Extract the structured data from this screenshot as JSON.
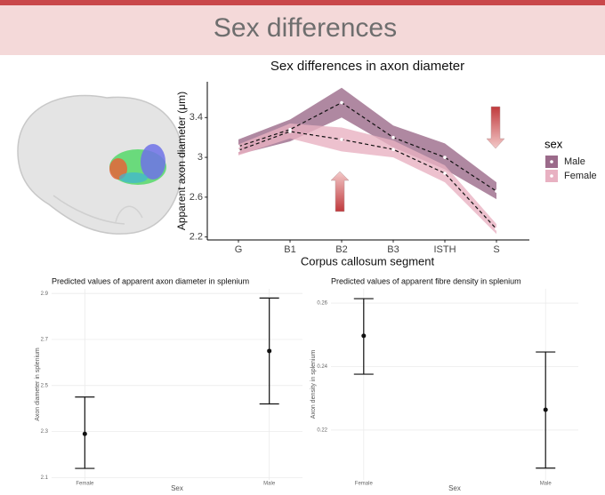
{
  "title": "Sex differences",
  "chart_data": [
    {
      "type": "line",
      "title": "Sex differences in axon diameter",
      "xlabel": "Corpus callosum segment",
      "ylabel": "Apparent axon diameter (μm)",
      "categories": [
        "G",
        "B1",
        "B2",
        "B3",
        "ISTH",
        "S"
      ],
      "ylim": [
        2.17,
        3.76
      ],
      "yticks": [
        2.2,
        2.6,
        3.0,
        3.4
      ],
      "legend_title": "sex",
      "legend": "right",
      "series": [
        {
          "name": "Male",
          "color": "#9b6a8a",
          "values": [
            3.11,
            3.28,
            3.55,
            3.2,
            3.0,
            2.66
          ],
          "lower": [
            3.03,
            3.16,
            3.4,
            3.1,
            2.88,
            2.58
          ],
          "upper": [
            3.18,
            3.38,
            3.7,
            3.32,
            3.14,
            2.75
          ]
        },
        {
          "name": "Female",
          "color": "#e8b1c2",
          "values": [
            3.07,
            3.26,
            3.18,
            3.08,
            2.84,
            2.28
          ],
          "lower": [
            3.02,
            3.19,
            3.06,
            3.0,
            2.75,
            2.23
          ],
          "upper": [
            3.13,
            3.34,
            3.3,
            3.17,
            2.92,
            2.33
          ]
        }
      ]
    },
    {
      "type": "errorbar",
      "title": "Predicted values of apparent axon diameter in splenium",
      "xlabel": "Sex",
      "ylabel": "Axon diameter in splenium",
      "categories": [
        "Female",
        "Male"
      ],
      "values": [
        2.29,
        2.65
      ],
      "lower": [
        2.14,
        2.42
      ],
      "upper": [
        2.45,
        2.88
      ],
      "ylim": [
        2.09,
        2.92
      ],
      "yticks": [
        2.1,
        2.3,
        2.5,
        2.7,
        2.9
      ],
      "grid": true
    },
    {
      "type": "errorbar",
      "title": "Predicted values of apparent fibre density in splenium",
      "xlabel": "Sex",
      "ylabel": "Axon density in splenium",
      "categories": [
        "Female",
        "Male"
      ],
      "values": [
        0.2497,
        0.2264
      ],
      "lower": [
        0.2376,
        0.208
      ],
      "upper": [
        0.2614,
        0.2446
      ],
      "ylim": [
        0.2043,
        0.2645
      ],
      "yticks": [
        0.22,
        0.24,
        0.26
      ],
      "grid": true
    }
  ]
}
